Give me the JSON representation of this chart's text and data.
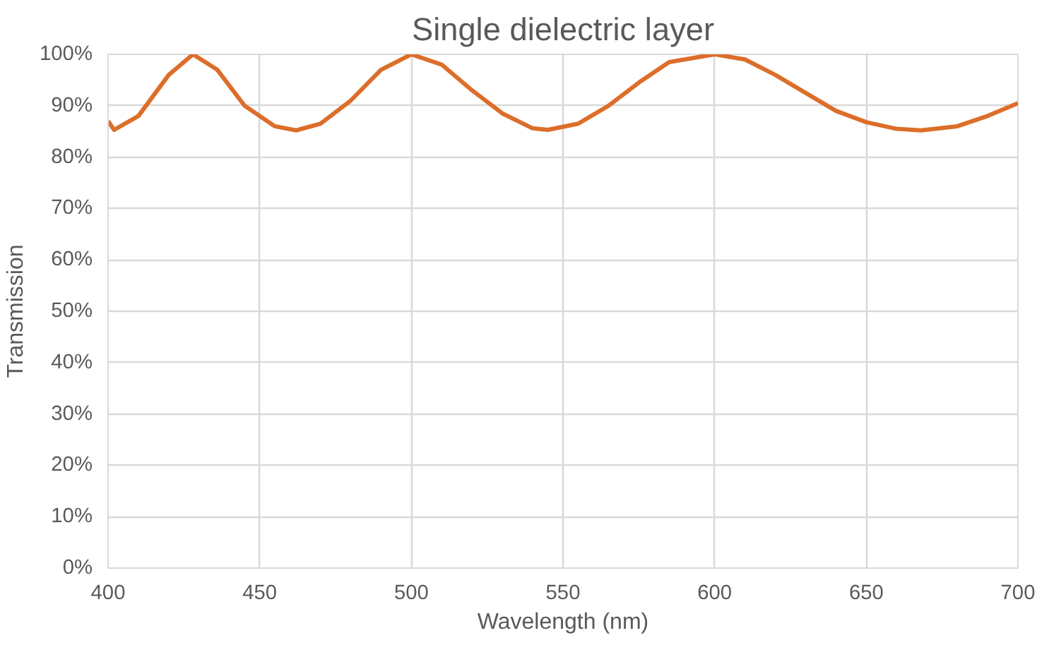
{
  "chart_data": {
    "type": "line",
    "title": "Single dielectric layer",
    "xlabel": "Wavelength (nm)",
    "ylabel": "Transmission",
    "x": [
      400,
      402,
      410,
      420,
      428,
      436,
      445,
      455,
      462,
      470,
      480,
      490,
      500,
      510,
      520,
      530,
      540,
      545,
      555,
      565,
      575,
      585,
      600,
      610,
      620,
      630,
      640,
      650,
      660,
      668,
      680,
      690,
      700
    ],
    "series": [
      {
        "color": "#dc6e2a",
        "values": [
          87,
          85.3,
          88,
          96,
          100,
          97,
          90,
          86,
          85.2,
          86.5,
          91,
          97,
          100,
          98,
          93,
          88.5,
          85.6,
          85.3,
          86.5,
          90,
          94.5,
          98.5,
          100,
          99,
          96,
          92.5,
          89,
          86.8,
          85.5,
          85.2,
          86,
          88,
          90.5
        ]
      }
    ],
    "xlim": [
      400,
      700
    ],
    "xticks": [
      400,
      450,
      500,
      550,
      600,
      650,
      700
    ],
    "ylim": [
      0,
      100
    ],
    "yticks": [
      {
        "value": 0,
        "label": "0%"
      },
      {
        "value": 10,
        "label": "10%"
      },
      {
        "value": 20,
        "label": "20%"
      },
      {
        "value": 30,
        "label": "30%"
      },
      {
        "value": 40,
        "label": "40%"
      },
      {
        "value": 50,
        "label": "50%"
      },
      {
        "value": 60,
        "label": "60%"
      },
      {
        "value": 70,
        "label": "70%"
      },
      {
        "value": 80,
        "label": "80%"
      },
      {
        "value": 90,
        "label": "90%"
      },
      {
        "value": 100,
        "label": "100%"
      }
    ],
    "grid": true,
    "line_style": "solid"
  }
}
